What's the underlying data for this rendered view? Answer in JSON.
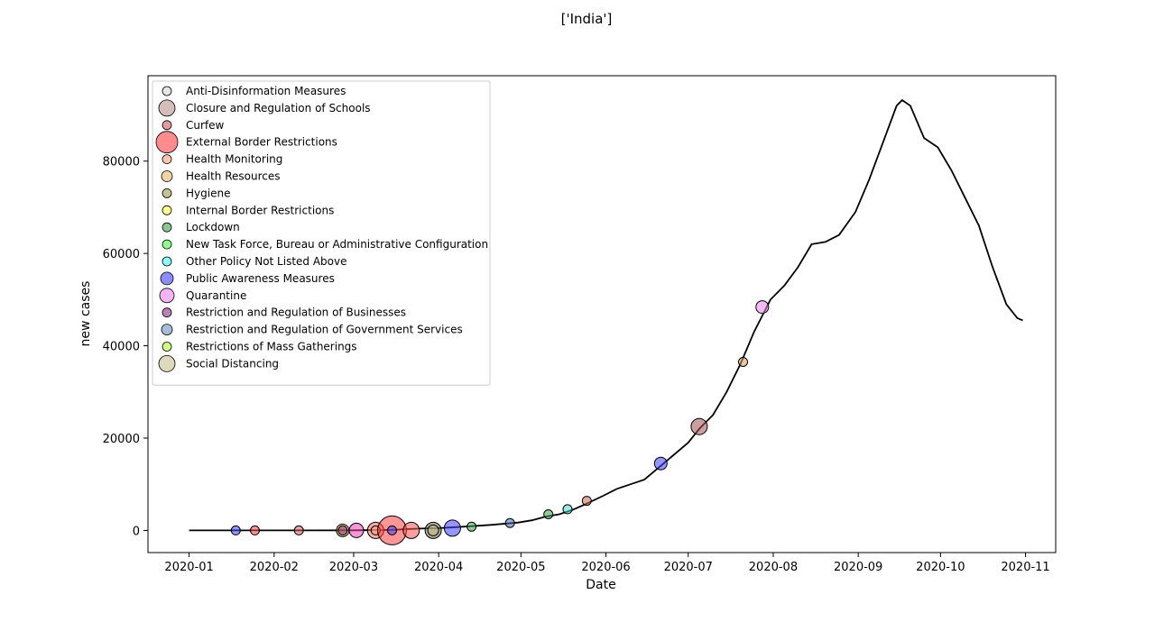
{
  "chart_data": {
    "type": "scatter",
    "title": "['India']",
    "xlabel": "Date",
    "ylabel": "new cases",
    "x_type": "date",
    "xlim": [
      "2019-12-17",
      "2020-11-12"
    ],
    "ylim": [
      -4800,
      98500
    ],
    "x_ticks": [
      "2020-01",
      "2020-02",
      "2020-03",
      "2020-04",
      "2020-05",
      "2020-06",
      "2020-07",
      "2020-08",
      "2020-09",
      "2020-10",
      "2020-11"
    ],
    "y_ticks": [
      0,
      20000,
      40000,
      60000,
      80000
    ],
    "y_tick_labels": [
      "0",
      "20000",
      "40000",
      "60000",
      "80000"
    ],
    "grid": false,
    "legend_position": "upper-left",
    "line_series": {
      "color": "#000000",
      "points": [
        [
          "2020-01-01",
          0
        ],
        [
          "2020-01-15",
          0
        ],
        [
          "2020-02-01",
          0
        ],
        [
          "2020-02-15",
          0
        ],
        [
          "2020-03-01",
          20
        ],
        [
          "2020-03-15",
          120
        ],
        [
          "2020-03-25",
          400
        ],
        [
          "2020-04-01",
          500
        ],
        [
          "2020-04-10",
          800
        ],
        [
          "2020-04-20",
          1200
        ],
        [
          "2020-04-30",
          1700
        ],
        [
          "2020-05-05",
          2200
        ],
        [
          "2020-05-10",
          3000
        ],
        [
          "2020-05-15",
          3500
        ],
        [
          "2020-05-20",
          4500
        ],
        [
          "2020-05-25",
          5800
        ],
        [
          "2020-05-31",
          7500
        ],
        [
          "2020-06-05",
          9000
        ],
        [
          "2020-06-10",
          10000
        ],
        [
          "2020-06-15",
          11000
        ],
        [
          "2020-06-20",
          13500
        ],
        [
          "2020-06-25",
          16000
        ],
        [
          "2020-07-01",
          19000
        ],
        [
          "2020-07-05",
          22000
        ],
        [
          "2020-07-10",
          25000
        ],
        [
          "2020-07-15",
          30000
        ],
        [
          "2020-07-20",
          36000
        ],
        [
          "2020-07-25",
          43000
        ],
        [
          "2020-07-31",
          50000
        ],
        [
          "2020-08-05",
          53000
        ],
        [
          "2020-08-10",
          57000
        ],
        [
          "2020-08-15",
          62000
        ],
        [
          "2020-08-20",
          62500
        ],
        [
          "2020-08-25",
          64000
        ],
        [
          "2020-08-31",
          69000
        ],
        [
          "2020-09-05",
          76000
        ],
        [
          "2020-09-10",
          84000
        ],
        [
          "2020-09-15",
          92000
        ],
        [
          "2020-09-17",
          93200
        ],
        [
          "2020-09-20",
          92000
        ],
        [
          "2020-09-25",
          85000
        ],
        [
          "2020-09-30",
          83000
        ],
        [
          "2020-10-05",
          78000
        ],
        [
          "2020-10-10",
          72000
        ],
        [
          "2020-10-15",
          66000
        ],
        [
          "2020-10-20",
          57000
        ],
        [
          "2020-10-25",
          49000
        ],
        [
          "2020-10-29",
          46000
        ],
        [
          "2020-10-31",
          45500
        ]
      ]
    },
    "legend": [
      {
        "name": "Anti-Disinformation Measures",
        "color": "#d3d3d3",
        "size": 5
      },
      {
        "name": "Closure and Regulation of Schools",
        "color": "#bc8f8f",
        "size": 9
      },
      {
        "name": "Curfew",
        "color": "#cd5c5c",
        "size": 5
      },
      {
        "name": "External Border Restrictions",
        "color": "#ff4040",
        "size": 12
      },
      {
        "name": "Health Monitoring",
        "color": "#ffa07a",
        "size": 5
      },
      {
        "name": "Health Resources",
        "color": "#e6b86a",
        "size": 6
      },
      {
        "name": "Hygiene",
        "color": "#9e9a4e",
        "size": 5
      },
      {
        "name": "Internal Border Restrictions",
        "color": "#ffff40",
        "size": 5
      },
      {
        "name": "Lockdown",
        "color": "#3c9e4c",
        "size": 5
      },
      {
        "name": "New Task Force, Bureau or Administrative Configuration",
        "color": "#40ff40",
        "size": 5
      },
      {
        "name": "Other Policy Not Listed Above",
        "color": "#40ffff",
        "size": 5
      },
      {
        "name": "Public Awareness Measures",
        "color": "#4040ff",
        "size": 7
      },
      {
        "name": "Quarantine",
        "color": "#ee82ee",
        "size": 8
      },
      {
        "name": "Restriction and Regulation of Businesses",
        "color": "#8b2f8b",
        "size": 5
      },
      {
        "name": "Restriction and Regulation of Government Services",
        "color": "#6a8fc0",
        "size": 6
      },
      {
        "name": "Restrictions of Mass Gatherings",
        "color": "#adff2f",
        "size": 5
      },
      {
        "name": "Social Distancing",
        "color": "#c4c090",
        "size": 9
      }
    ],
    "markers": [
      {
        "date": "2020-01-18",
        "value": 0,
        "category": "Public Awareness Measures",
        "size": 5,
        "color": "#4040ff"
      },
      {
        "date": "2020-01-25",
        "value": 0,
        "category": "Curfew",
        "size": 5,
        "color": "#ff4040"
      },
      {
        "date": "2020-02-10",
        "value": 0,
        "category": "Curfew",
        "size": 5,
        "color": "#cd5c5c"
      },
      {
        "date": "2020-02-26",
        "value": 0,
        "category": "Hygiene",
        "size": 7,
        "color": "#d4a030"
      },
      {
        "date": "2020-02-26",
        "value": 0,
        "category": "Restriction and Regulation of Businesses",
        "size": 5,
        "color": "#8b2f8b"
      },
      {
        "date": "2020-03-02",
        "value": 0,
        "category": "Quarantine",
        "size": 8,
        "color": "#ee3fb0"
      },
      {
        "date": "2020-03-09",
        "value": 0,
        "category": "External Border Restrictions",
        "size": 9,
        "color": "#f07060"
      },
      {
        "date": "2020-03-09",
        "value": 0,
        "category": "Health Monitoring",
        "size": 5,
        "color": "#ffa07a"
      },
      {
        "date": "2020-03-15",
        "value": 0,
        "category": "External Border Restrictions",
        "size": 16,
        "color": "#ff4040"
      },
      {
        "date": "2020-03-15",
        "value": 0,
        "category": "Public Awareness Measures",
        "size": 5,
        "color": "#4040ff"
      },
      {
        "date": "2020-03-22",
        "value": 0,
        "category": "External Border Restrictions",
        "size": 9,
        "color": "#ff5050"
      },
      {
        "date": "2020-03-30",
        "value": 0,
        "category": "Social Distancing",
        "size": 9,
        "color": "#6b6b40"
      },
      {
        "date": "2020-03-30",
        "value": 0,
        "category": "Health Resources",
        "size": 6,
        "color": "#c4c090"
      },
      {
        "date": "2020-04-06",
        "value": 500,
        "category": "Public Awareness Measures",
        "size": 9,
        "color": "#4040ff"
      },
      {
        "date": "2020-04-13",
        "value": 800,
        "category": "Lockdown",
        "size": 5,
        "color": "#3c9e4c"
      },
      {
        "date": "2020-04-27",
        "value": 1600,
        "category": "Restriction and Regulation of Government Services",
        "size": 5,
        "color": "#4070b0"
      },
      {
        "date": "2020-05-11",
        "value": 3500,
        "category": "Lockdown",
        "size": 5,
        "color": "#3c9e4c"
      },
      {
        "date": "2020-05-18",
        "value": 4600,
        "category": "Other Policy Not Listed Above",
        "size": 5,
        "color": "#40e0d0"
      },
      {
        "date": "2020-05-25",
        "value": 6400,
        "category": "Curfew",
        "size": 5,
        "color": "#c96a50"
      },
      {
        "date": "2020-06-21",
        "value": 14500,
        "category": "Public Awareness Measures",
        "size": 7,
        "color": "#4040ff"
      },
      {
        "date": "2020-07-05",
        "value": 22500,
        "category": "Closure and Regulation of Schools",
        "size": 9,
        "color": "#a05050"
      },
      {
        "date": "2020-07-21",
        "value": 36500,
        "category": "Health Resources",
        "size": 5,
        "color": "#d4a060"
      },
      {
        "date": "2020-07-28",
        "value": 48400,
        "category": "Quarantine",
        "size": 7,
        "color": "#ee82ee"
      }
    ]
  }
}
